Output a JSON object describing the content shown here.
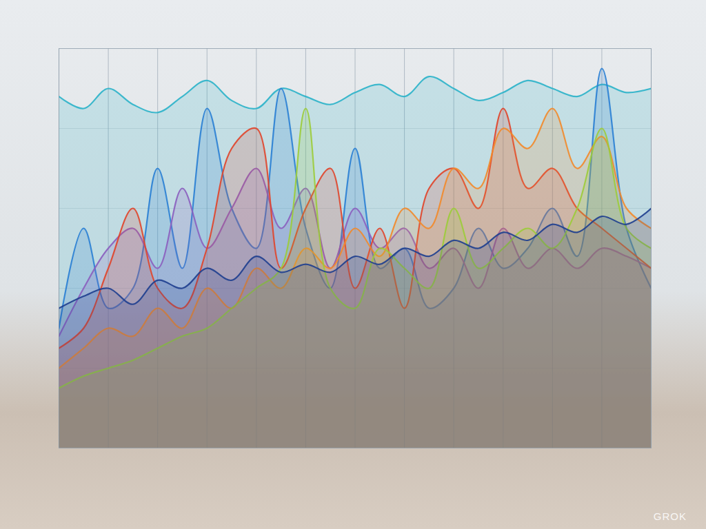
{
  "chart_data": {
    "type": "line",
    "annotations": [
      "GROK"
    ],
    "x": [
      0,
      1,
      2,
      3,
      4,
      5,
      6,
      7,
      8,
      9,
      10,
      11,
      12,
      13,
      14,
      15,
      16,
      17,
      18,
      19,
      20,
      21,
      22,
      23,
      24
    ],
    "xlim": [
      0,
      24
    ],
    "xticks": [
      0,
      2,
      4,
      6,
      8,
      10,
      12,
      14,
      16,
      18,
      20,
      22,
      24
    ],
    "ylim": [
      0,
      100
    ],
    "yticks": [
      0,
      20,
      40,
      60,
      80,
      100
    ],
    "grid": true,
    "tick_labels": false,
    "series": [
      {
        "color": "#2bb3c9",
        "values": [
          88,
          85,
          90,
          86,
          84,
          88,
          92,
          87,
          85,
          90,
          88,
          86,
          89,
          91,
          88,
          93,
          90,
          87,
          89,
          92,
          90,
          88,
          91,
          89,
          90
        ]
      },
      {
        "color": "#2a7fd4",
        "values": [
          30,
          55,
          35,
          40,
          70,
          45,
          85,
          60,
          50,
          90,
          55,
          40,
          75,
          45,
          50,
          35,
          40,
          55,
          45,
          50,
          60,
          48,
          95,
          55,
          40
        ]
      },
      {
        "color": "#8b5fbf",
        "values": [
          28,
          40,
          50,
          55,
          45,
          65,
          50,
          60,
          70,
          55,
          65,
          45,
          60,
          50,
          55,
          45,
          50,
          40,
          55,
          45,
          50,
          45,
          50,
          48,
          45
        ]
      },
      {
        "color": "#e0452b",
        "values": [
          25,
          30,
          45,
          60,
          40,
          35,
          50,
          75,
          80,
          45,
          60,
          70,
          40,
          55,
          35,
          65,
          70,
          60,
          85,
          65,
          70,
          60,
          55,
          50,
          45
        ]
      },
      {
        "color": "#f28a2b",
        "values": [
          20,
          25,
          30,
          28,
          35,
          30,
          40,
          35,
          45,
          40,
          50,
          45,
          55,
          48,
          60,
          55,
          70,
          65,
          80,
          75,
          85,
          70,
          78,
          60,
          55
        ]
      },
      {
        "color": "#9ccc3a",
        "values": [
          15,
          18,
          20,
          22,
          25,
          28,
          30,
          35,
          40,
          45,
          85,
          40,
          35,
          50,
          45,
          40,
          60,
          45,
          50,
          55,
          50,
          60,
          80,
          55,
          50
        ]
      },
      {
        "color": "#1f3f8f",
        "values": [
          35,
          38,
          40,
          36,
          42,
          40,
          45,
          42,
          48,
          44,
          46,
          44,
          48,
          46,
          50,
          48,
          52,
          50,
          54,
          52,
          56,
          54,
          58,
          56,
          60
        ]
      }
    ]
  }
}
